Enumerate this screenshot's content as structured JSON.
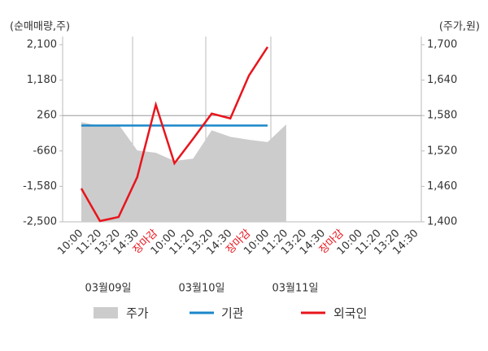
{
  "chart_data": {
    "type": "line",
    "y_label": "(순매매량,주)",
    "y2_label": "(주가,원)",
    "categories": [
      "10:00",
      "11:20",
      "13:20",
      "14:30",
      "장마감",
      "10:00",
      "11:20",
      "13:20",
      "14:30",
      "장마감",
      "10:00",
      "11:20",
      "13:20",
      "14:30",
      "장마감",
      "10:00",
      "11:20",
      "13:20",
      "14:30"
    ],
    "dates": [
      "03월09일",
      "03월10일",
      "03월11일"
    ],
    "ylim": [
      -2500,
      2100
    ],
    "yticks": [
      {
        "value": -2500,
        "label": "-2,500"
      },
      {
        "value": -1580,
        "label": "-1,580"
      },
      -660,
      260,
      {
        "value": 1180,
        "label": "1,180"
      },
      {
        "value": 2100,
        "label": "2,100"
      }
    ],
    "y2lim": [
      1400,
      1700
    ],
    "y2ticks": [
      {
        "value": 1400,
        "label": "1,400"
      },
      {
        "value": 1460,
        "label": "1,460"
      },
      {
        "value": 1520,
        "label": "1,520"
      },
      {
        "value": 1580,
        "label": "1,580"
      },
      {
        "value": 1640,
        "label": "1,640"
      },
      {
        "value": 1700,
        "label": "1,700"
      }
    ],
    "series": [
      {
        "name": "주가",
        "type": "area",
        "axis": "y2",
        "color": "#cccccc",
        "values": [
          1569,
          1562,
          1565,
          1521,
          1517,
          1503,
          1507,
          1555,
          1544,
          1539,
          1535,
          1565,
          null,
          null,
          null,
          null,
          null,
          null,
          null
        ]
      },
      {
        "name": "기관",
        "type": "line",
        "color": "#1a87c9",
        "values": [
          0,
          0,
          0,
          0,
          0,
          0,
          0,
          0,
          0,
          0,
          0,
          null,
          null,
          null,
          null,
          null,
          null,
          null,
          null
        ]
      },
      {
        "name": "외국인",
        "type": "line",
        "color": "#e8141c",
        "values": [
          -1635,
          -2480,
          -2375,
          -1340,
          540,
          -980,
          -345,
          310,
          185,
          1300,
          2040,
          null,
          null,
          null,
          null,
          null,
          null,
          null,
          null
        ]
      }
    ]
  }
}
